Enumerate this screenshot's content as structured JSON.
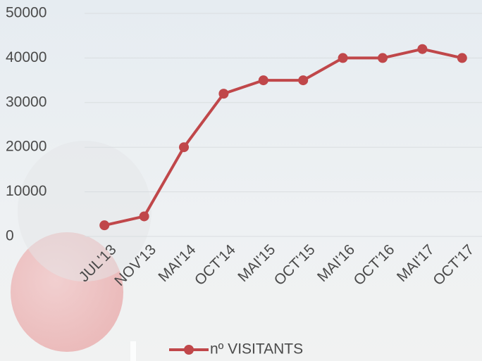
{
  "chart_data": {
    "type": "line",
    "categories": [
      "JUL'13",
      "NOV'13",
      "MAI'14",
      "OCT'14",
      "MAI'15",
      "OCT'15",
      "MAI'16",
      "OCT'16",
      "MAI'17",
      "OCT'17"
    ],
    "series": [
      {
        "name": "nº VISITANTS",
        "color": "#c0474a",
        "values": [
          2500,
          4500,
          20000,
          32000,
          35000,
          35000,
          40000,
          40000,
          42000,
          40000
        ]
      }
    ],
    "ylim": [
      0,
      50000
    ],
    "yticks": [
      0,
      10000,
      20000,
      30000,
      40000,
      50000
    ],
    "grid": true,
    "legend": "bottom"
  }
}
